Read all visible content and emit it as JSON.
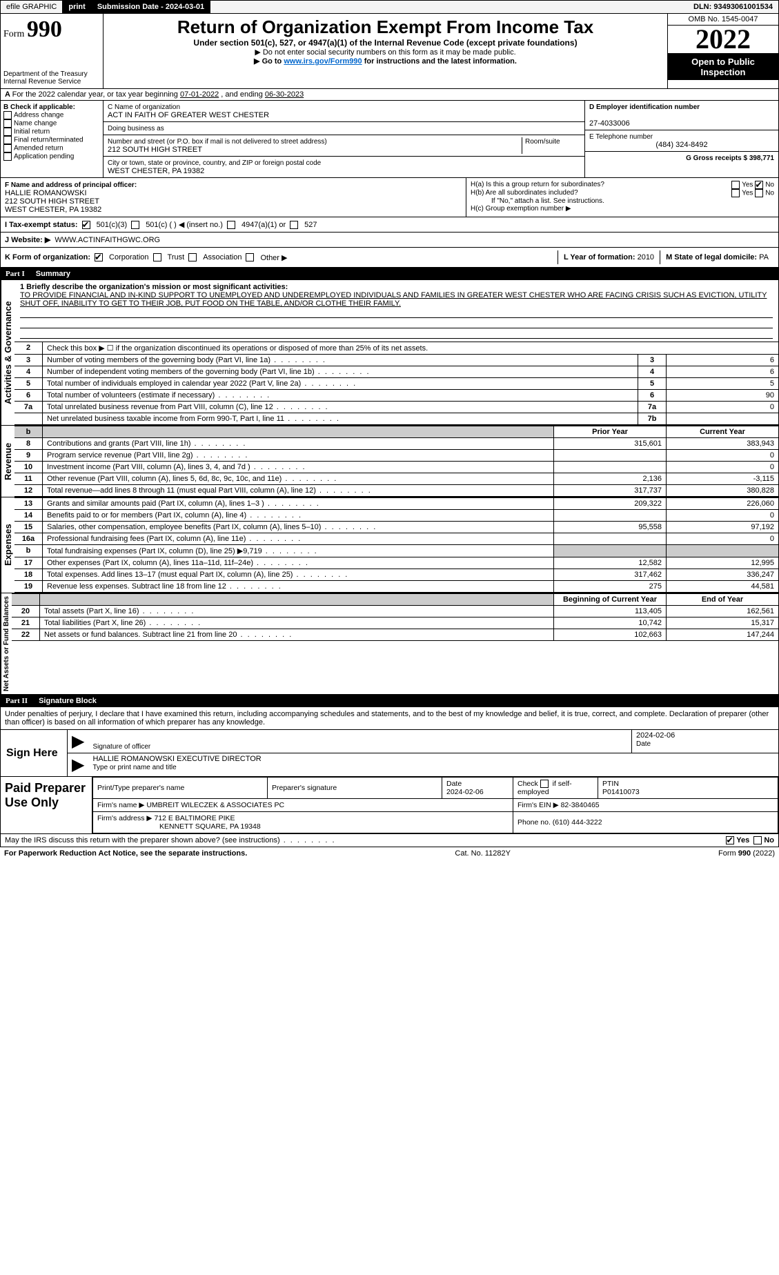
{
  "topbar": {
    "efile": "efile GRAPHIC",
    "print": "print",
    "submission_label": "Submission Date - ",
    "submission_date": "2024-03-01",
    "dln_label": "DLN: ",
    "dln": "93493061001534"
  },
  "header": {
    "form_prefix": "Form",
    "form_num": "990",
    "title": "Return of Organization Exempt From Income Tax",
    "subtitle": "Under section 501(c), 527, or 4947(a)(1) of the Internal Revenue Code (except private foundations)",
    "note1": "▶ Do not enter social security numbers on this form as it may be made public.",
    "note2_pre": "▶ Go to ",
    "note2_link": "www.irs.gov/Form990",
    "note2_post": " for instructions and the latest information.",
    "dept": "Department of the Treasury",
    "irs": "Internal Revenue Service",
    "omb": "OMB No. 1545-0047",
    "year": "2022",
    "open": "Open to Public Inspection"
  },
  "a_line": {
    "text": "For the 2022 calendar year, or tax year beginning ",
    "begin": "07-01-2022",
    "mid": " , and ending ",
    "end": "06-30-2023"
  },
  "b": {
    "label": "B Check if applicable:",
    "items": [
      "Address change",
      "Name change",
      "Initial return",
      "Final return/terminated",
      "Amended return",
      "Application pending"
    ]
  },
  "c": {
    "name_label": "C Name of organization",
    "name": "ACT IN FAITH OF GREATER WEST CHESTER",
    "dba_label": "Doing business as",
    "street_label": "Number and street (or P.O. box if mail is not delivered to street address)",
    "room_label": "Room/suite",
    "street": "212 SOUTH HIGH STREET",
    "city_label": "City or town, state or province, country, and ZIP or foreign postal code",
    "city": "WEST CHESTER, PA  19382"
  },
  "d": {
    "label": "D Employer identification number",
    "value": "27-4033006"
  },
  "e": {
    "label": "E Telephone number",
    "value": "(484) 324-8492"
  },
  "g": {
    "label": "G Gross receipts $ ",
    "value": "398,771"
  },
  "f": {
    "label": "F Name and address of principal officer:",
    "name": "HALLIE ROMANOWSKI",
    "street": "212 SOUTH HIGH STREET",
    "city": "WEST CHESTER, PA  19382"
  },
  "h": {
    "a_label": "H(a)  Is this a group return for subordinates?",
    "a_yes": "Yes",
    "a_no": "No",
    "b_label": "H(b)  Are all subordinates included?",
    "b_note": "If \"No,\" attach a list. See instructions.",
    "c_label": "H(c)  Group exemption number ▶"
  },
  "i": {
    "label": "I   Tax-exempt status:",
    "opts": [
      "501(c)(3)",
      "501(c) (  ) ◀ (insert no.)",
      "4947(a)(1) or",
      "527"
    ]
  },
  "j": {
    "label": "J   Website: ▶ ",
    "value": "WWW.ACTINFAITHGWC.ORG"
  },
  "k": {
    "label": "K Form of organization:",
    "opts": [
      "Corporation",
      "Trust",
      "Association",
      "Other ▶"
    ],
    "l_label": "L Year of formation: ",
    "l_val": "2010",
    "m_label": "M State of legal domicile: ",
    "m_val": "PA"
  },
  "part1": {
    "num": "Part I",
    "title": "Summary"
  },
  "mission": {
    "label": "1  Briefly describe the organization's mission or most significant activities:",
    "text": "TO PROVIDE FINANCIAL AND IN-KIND SUPPORT TO UNEMPLOYED AND UNDEREMPLOYED INDIVIDUALS AND FAMILIES IN GREATER WEST CHESTER WHO ARE FACING CRISIS SUCH AS EVICTION, UTILITY SHUT OFF, INABILITY TO GET TO THEIR JOB, PUT FOOD ON THE TABLE, AND/OR CLOTHE THEIR FAMILY."
  },
  "gov_rows": [
    {
      "n": "2",
      "t": "Check this box ▶ ☐ if the organization discontinued its operations or disposed of more than 25% of its net assets.",
      "lab": "",
      "v": ""
    },
    {
      "n": "3",
      "t": "Number of voting members of the governing body (Part VI, line 1a)",
      "lab": "3",
      "v": "6"
    },
    {
      "n": "4",
      "t": "Number of independent voting members of the governing body (Part VI, line 1b)",
      "lab": "4",
      "v": "6"
    },
    {
      "n": "5",
      "t": "Total number of individuals employed in calendar year 2022 (Part V, line 2a)",
      "lab": "5",
      "v": "5"
    },
    {
      "n": "6",
      "t": "Total number of volunteers (estimate if necessary)",
      "lab": "6",
      "v": "90"
    },
    {
      "n": "7a",
      "t": "Total unrelated business revenue from Part VIII, column (C), line 12",
      "lab": "7a",
      "v": "0"
    },
    {
      "n": "",
      "t": "Net unrelated business taxable income from Form 990-T, Part I, line 11",
      "lab": "7b",
      "v": ""
    }
  ],
  "col_headers": {
    "b_blank": "b",
    "prior": "Prior Year",
    "current": "Current Year"
  },
  "rev_rows": [
    {
      "n": "8",
      "t": "Contributions and grants (Part VIII, line 1h)",
      "py": "315,601",
      "cy": "383,943"
    },
    {
      "n": "9",
      "t": "Program service revenue (Part VIII, line 2g)",
      "py": "",
      "cy": "0"
    },
    {
      "n": "10",
      "t": "Investment income (Part VIII, column (A), lines 3, 4, and 7d )",
      "py": "",
      "cy": "0"
    },
    {
      "n": "11",
      "t": "Other revenue (Part VIII, column (A), lines 5, 6d, 8c, 9c, 10c, and 11e)",
      "py": "2,136",
      "cy": "-3,115"
    },
    {
      "n": "12",
      "t": "Total revenue—add lines 8 through 11 (must equal Part VIII, column (A), line 12)",
      "py": "317,737",
      "cy": "380,828"
    }
  ],
  "exp_rows": [
    {
      "n": "13",
      "t": "Grants and similar amounts paid (Part IX, column (A), lines 1–3 )",
      "py": "209,322",
      "cy": "226,060"
    },
    {
      "n": "14",
      "t": "Benefits paid to or for members (Part IX, column (A), line 4)",
      "py": "",
      "cy": "0"
    },
    {
      "n": "15",
      "t": "Salaries, other compensation, employee benefits (Part IX, column (A), lines 5–10)",
      "py": "95,558",
      "cy": "97,192"
    },
    {
      "n": "16a",
      "t": "Professional fundraising fees (Part IX, column (A), line 11e)",
      "py": "",
      "cy": "0"
    },
    {
      "n": "b",
      "t": "Total fundraising expenses (Part IX, column (D), line 25) ▶9,719",
      "py": "shade",
      "cy": "shade"
    },
    {
      "n": "17",
      "t": "Other expenses (Part IX, column (A), lines 11a–11d, 11f–24e)",
      "py": "12,582",
      "cy": "12,995"
    },
    {
      "n": "18",
      "t": "Total expenses. Add lines 13–17 (must equal Part IX, column (A), line 25)",
      "py": "317,462",
      "cy": "336,247"
    },
    {
      "n": "19",
      "t": "Revenue less expenses. Subtract line 18 from line 12",
      "py": "275",
      "cy": "44,581"
    }
  ],
  "na_headers": {
    "begin": "Beginning of Current Year",
    "end": "End of Year"
  },
  "na_rows": [
    {
      "n": "20",
      "t": "Total assets (Part X, line 16)",
      "py": "113,405",
      "cy": "162,561"
    },
    {
      "n": "21",
      "t": "Total liabilities (Part X, line 26)",
      "py": "10,742",
      "cy": "15,317"
    },
    {
      "n": "22",
      "t": "Net assets or fund balances. Subtract line 21 from line 20",
      "py": "102,663",
      "cy": "147,244"
    }
  ],
  "vtabs": {
    "gov": "Activities & Governance",
    "rev": "Revenue",
    "exp": "Expenses",
    "na": "Net Assets or Fund Balances"
  },
  "part2": {
    "num": "Part II",
    "title": "Signature Block"
  },
  "penalties": "Under penalties of perjury, I declare that I have examined this return, including accompanying schedules and statements, and to the best of my knowledge and belief, it is true, correct, and complete. Declaration of preparer (other than officer) is based on all information of which preparer has any knowledge.",
  "sign": {
    "label": "Sign Here",
    "sig_officer": "Signature of officer",
    "date": "2024-02-06",
    "date_lab": "Date",
    "name": "HALLIE ROMANOWSKI  EXECUTIVE DIRECTOR",
    "name_lab": "Type or print name and title"
  },
  "prep": {
    "label": "Paid Preparer Use Only",
    "h1": "Print/Type preparer's name",
    "h2": "Preparer's signature",
    "h3": "Date",
    "h4_a": "Check",
    "h4_b": "if self-employed",
    "h5": "PTIN",
    "date": "2024-02-06",
    "ptin": "P01410073",
    "firm_lab": "Firm's name    ▶ ",
    "firm": "UMBREIT WILECZEK & ASSOCIATES PC",
    "ein_lab": "Firm's EIN ▶ ",
    "ein": "82-3840465",
    "addr_lab": "Firm's address ▶ ",
    "addr1": "712 E BALTIMORE PIKE",
    "addr2": "KENNETT SQUARE, PA  19348",
    "phone_lab": "Phone no. ",
    "phone": "(610) 444-3222"
  },
  "discuss": {
    "text": "May the IRS discuss this return with the preparer shown above? (see instructions)",
    "yes": "Yes",
    "no": "No"
  },
  "footer": {
    "pra": "For Paperwork Reduction Act Notice, see the separate instructions.",
    "cat": "Cat. No. 11282Y",
    "form": "Form 990 (2022)"
  }
}
